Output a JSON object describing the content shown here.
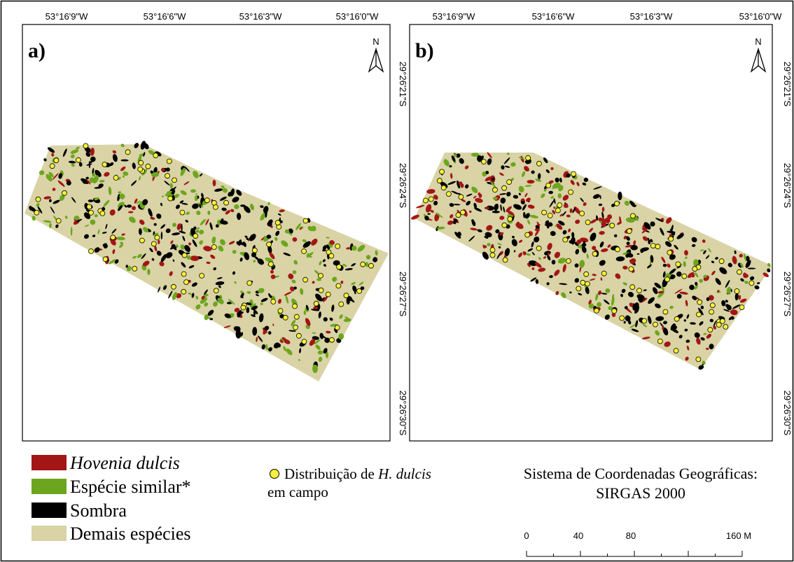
{
  "panels": [
    {
      "label": "a)",
      "north": "N",
      "x_labels": [
        "53°16'9\"W",
        "53°16'6\"W",
        "53°16'3\"W",
        "53°16'0\"W"
      ],
      "y_labels": [
        "29°26'21\"S",
        "29°26'24\"S",
        "29°26'27\"S",
        "29°26'30\"S"
      ]
    },
    {
      "label": "b)",
      "north": "N",
      "x_labels": [
        "53°16'9\"W",
        "53°16'6\"W",
        "53°16'3\"W",
        "53°16'0\"W"
      ],
      "y_labels": [
        "29°26'21\"S",
        "29°26'24\"S",
        "29°26'27\"S",
        "29°26'30\"S"
      ]
    }
  ],
  "legend": {
    "items": [
      {
        "label": "Hovenia dulcis",
        "color": "#a31616"
      },
      {
        "label": "Espécie similar*",
        "color": "#6ca61e"
      },
      {
        "label": "Sombra",
        "color": "#000000"
      },
      {
        "label": "Demais espécies",
        "color": "#d9d3a6"
      }
    ],
    "points": {
      "text": "Distribuição de",
      "species": "H. dulcis",
      "text2": "em campo",
      "color": "#f5f03a"
    }
  },
  "coordinate_system": {
    "line1": "Sistema de Coordenadas Geográficas:",
    "line2": "SIRGAS 2000"
  },
  "scale_bar": {
    "labels": [
      "0",
      "40",
      "80",
      "160 M"
    ]
  }
}
